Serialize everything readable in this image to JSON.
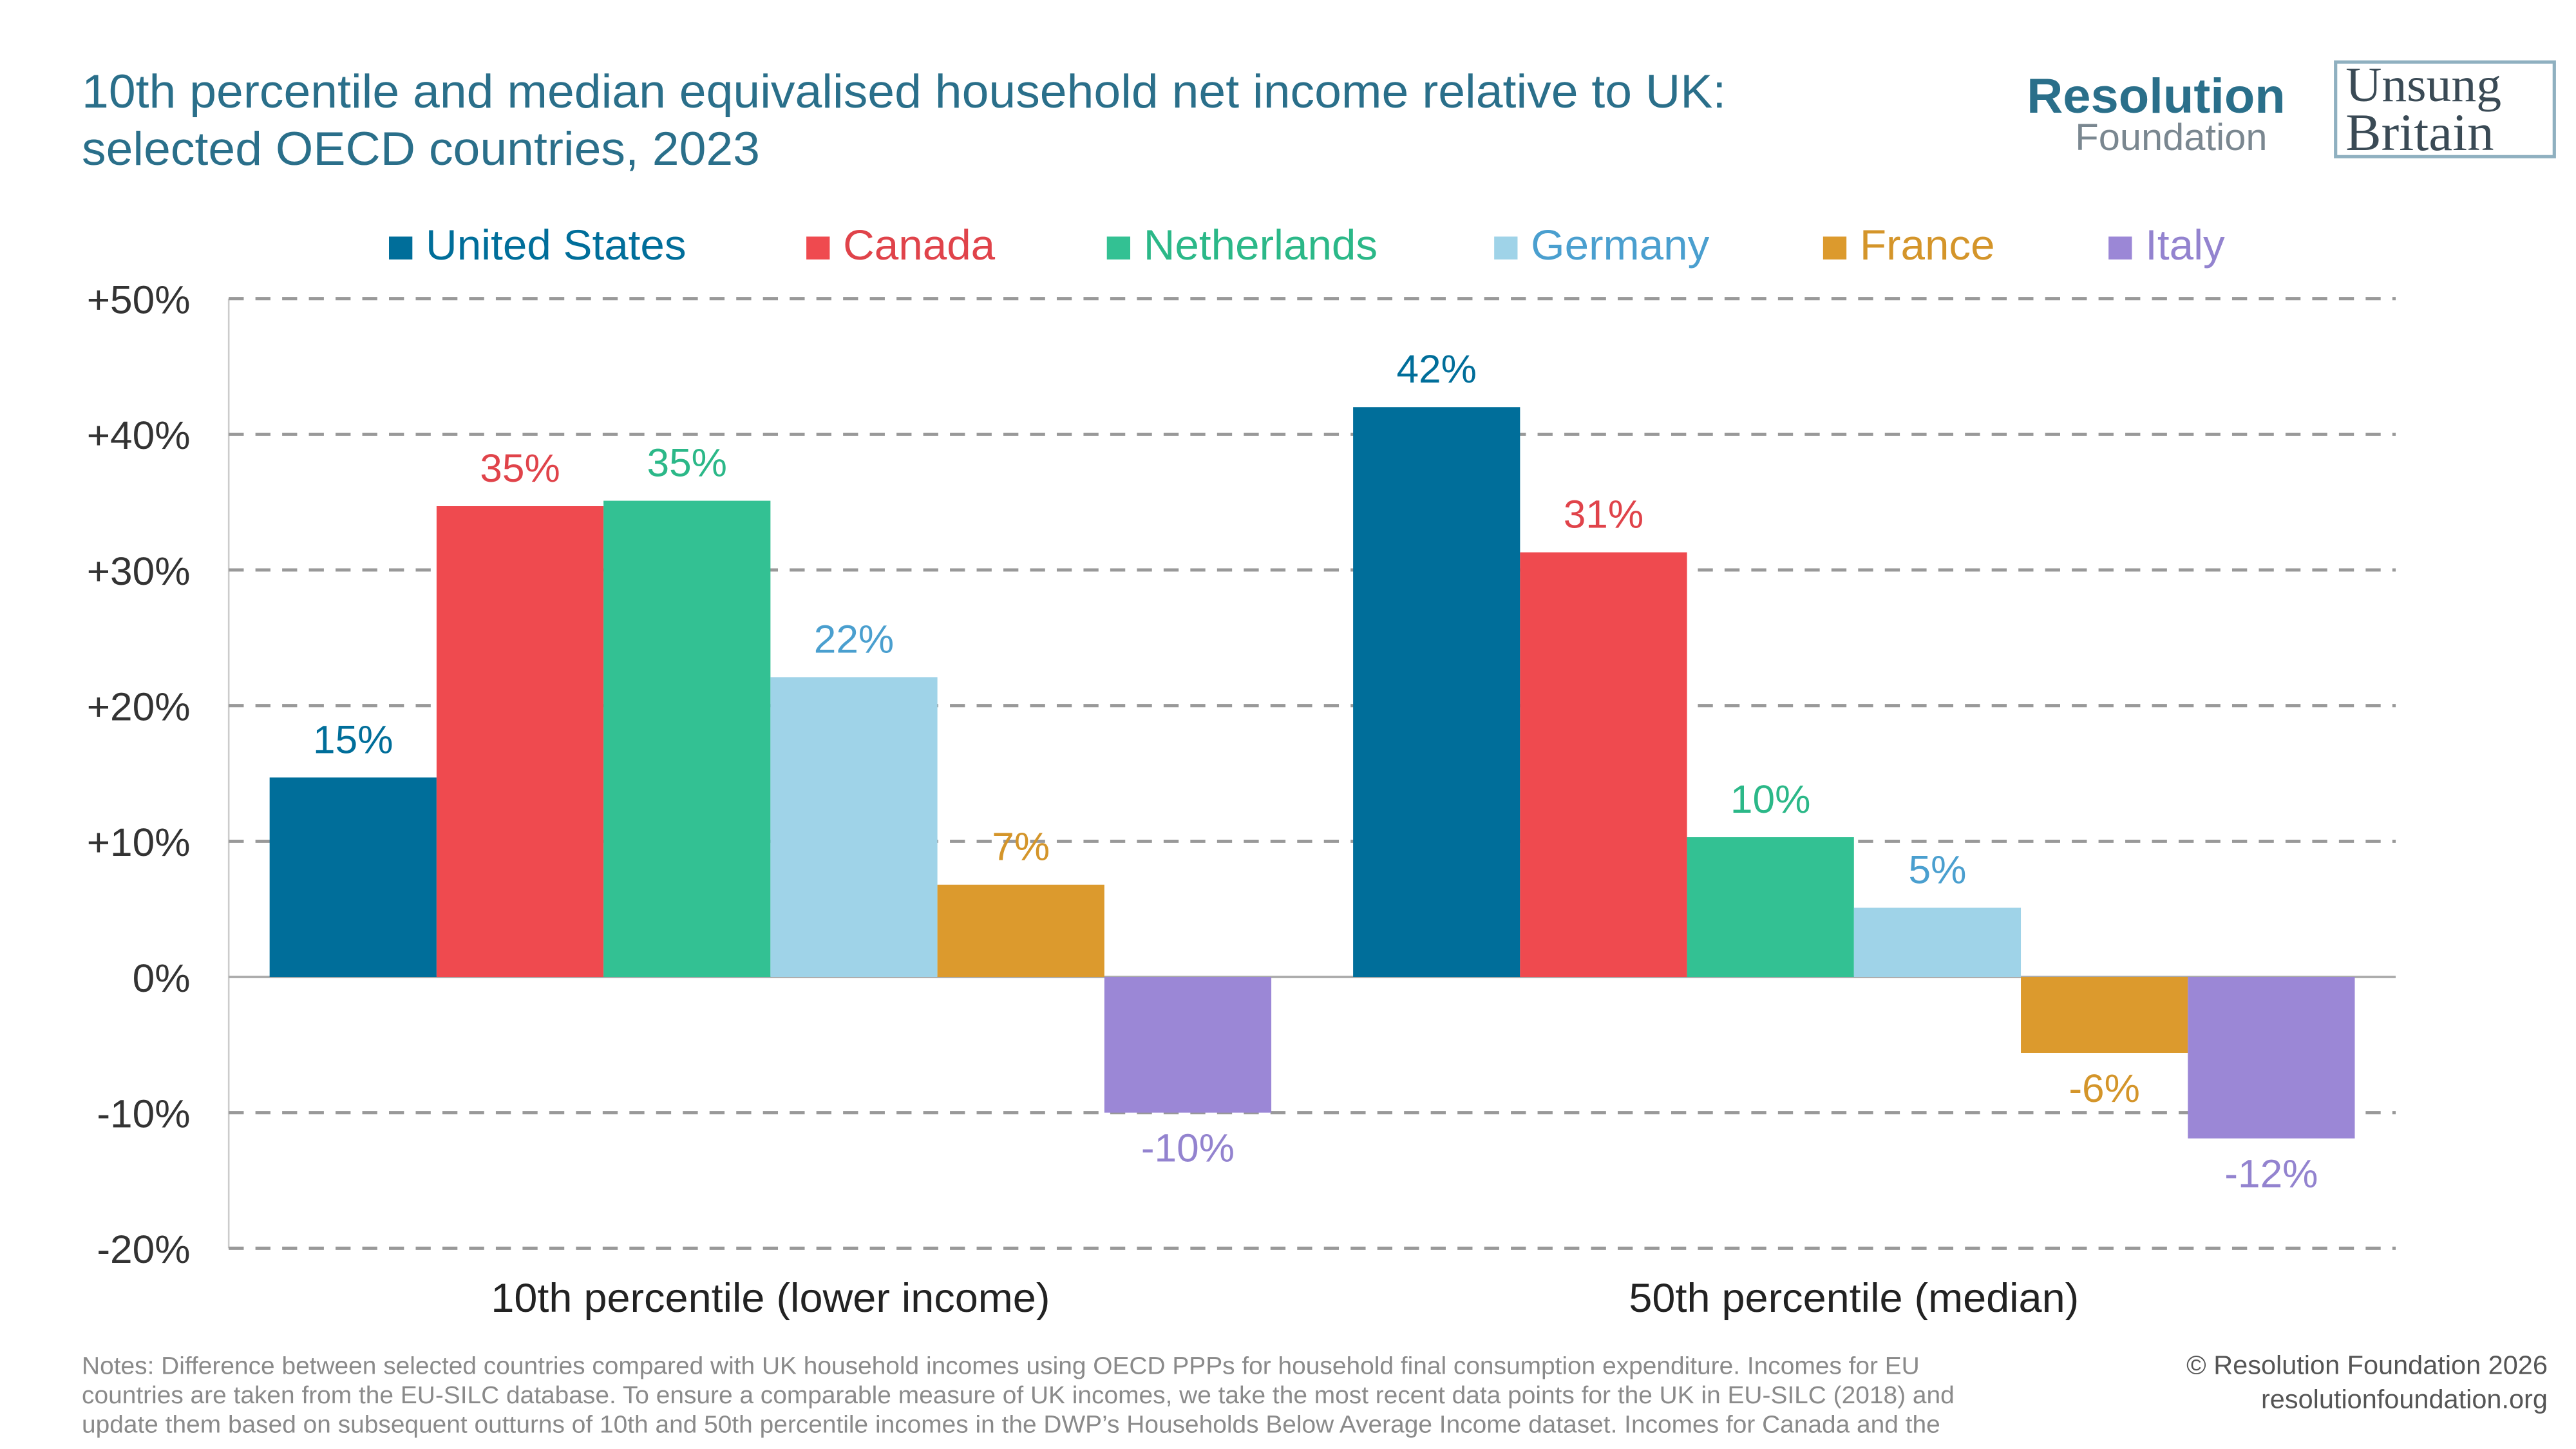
{
  "chart_data": {
    "type": "bar",
    "title": [
      "10th percentile and median equivalised household net income relative to UK:",
      "selected OECD countries, 2023"
    ],
    "categories": [
      "10th percentile (lower income)",
      "50th percentile (median)"
    ],
    "series": [
      {
        "name": "United States",
        "color": "#006e9a",
        "label_color": "#006e9a",
        "values": [
          14.7,
          42
        ],
        "value_labels": [
          "15%",
          "42%"
        ]
      },
      {
        "name": "Canada",
        "color": "#ef4a4f",
        "label_color": "#e0434a",
        "values": [
          34.7,
          31.3
        ],
        "value_labels": [
          "35%",
          "31%"
        ]
      },
      {
        "name": "Netherlands",
        "color": "#33c193",
        "label_color": "#2bb888",
        "values": [
          35.1,
          10.3
        ],
        "value_labels": [
          "35%",
          "10%"
        ]
      },
      {
        "name": "Germany",
        "color": "#9fd3e8",
        "label_color": "#4a9fcf",
        "values": [
          22.1,
          5.1
        ],
        "value_labels": [
          "22%",
          "5%"
        ]
      },
      {
        "name": "France",
        "color": "#dc9a2d",
        "label_color": "#d4952a",
        "values": [
          6.8,
          -5.6
        ],
        "value_labels": [
          "7%",
          "-6%"
        ]
      },
      {
        "name": "Italy",
        "color": "#9b87d6",
        "label_color": "#9383cf",
        "values": [
          -10,
          -11.9
        ],
        "value_labels": [
          "-10%",
          "-12%"
        ]
      }
    ],
    "ylim": [
      -20,
      50
    ],
    "yticks": [
      {
        "value": -20,
        "label": "-20%"
      },
      {
        "value": -10,
        "label": "-10%"
      },
      {
        "value": 0,
        "label": "0%"
      },
      {
        "value": 10,
        "label": "+10%"
      },
      {
        "value": 20,
        "label": "+20%"
      },
      {
        "value": 30,
        "label": "+30%"
      },
      {
        "value": 40,
        "label": "+40%"
      },
      {
        "value": 50,
        "label": "+50%"
      }
    ],
    "grid": true,
    "notes": [
      "Notes: Difference between selected countries compared with UK household incomes using OECD PPPs for household final consumption expenditure. Incomes for EU",
      "countries are taken from the EU-SILC database. To ensure a comparable measure of UK incomes, we take the most recent data points for the UK in EU-SILC (2018) and",
      "update them based on subsequent outturns of 10th and 50th percentile incomes in the DWP’s Households Below Average Income dataset. Incomes for Canada and the"
    ]
  },
  "branding": {
    "resolution": "Resolution",
    "foundation": "Foundation",
    "unsung": "Unsung",
    "britain": "Britain"
  },
  "footer": {
    "copyright": "© Resolution Foundation 2026",
    "website": "resolutionfoundation.org"
  }
}
